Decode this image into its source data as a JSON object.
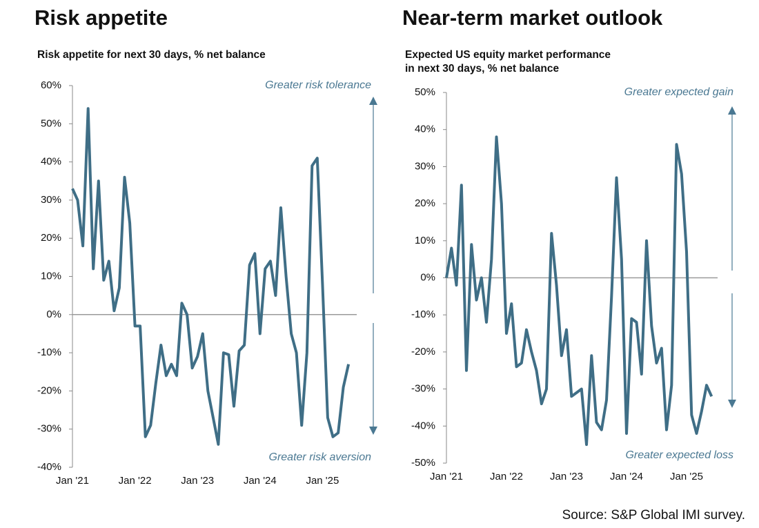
{
  "chart_data": [
    {
      "type": "line",
      "title": "Risk appetite",
      "subtitle": [
        "Risk appetite for next 30 days, % net balance"
      ],
      "annotations": [
        "Greater risk tolerance",
        "Greater risk aversion"
      ],
      "categories": [
        "Jan '21",
        null,
        null,
        null,
        null,
        null,
        null,
        null,
        null,
        null,
        null,
        null,
        "Jan '22",
        null,
        null,
        null,
        null,
        null,
        null,
        null,
        null,
        null,
        null,
        null,
        "Jan '23",
        null,
        null,
        null,
        null,
        null,
        null,
        null,
        null,
        null,
        null,
        null,
        "Jan '24",
        null,
        null,
        null,
        null,
        null,
        null,
        null,
        null,
        null,
        null,
        null,
        "Jan '25",
        null,
        null,
        null,
        null,
        null
      ],
      "values": [
        33,
        30,
        18,
        54,
        12,
        35,
        9,
        14,
        1,
        7,
        36,
        24,
        -3,
        -3,
        -32,
        -29,
        -18,
        -8,
        -16,
        -13,
        -16,
        3,
        0,
        -14,
        -11,
        -5,
        -20,
        -27,
        -34,
        -10,
        -10.5,
        -24,
        -9.5,
        -8,
        13,
        16,
        -5,
        12,
        14,
        5,
        28,
        10,
        -5,
        -10,
        -29,
        -10,
        39,
        41,
        8,
        -27,
        -32,
        -31,
        -19,
        -13
      ],
      "color": "#3f6e86",
      "ylim": [
        -40,
        60
      ],
      "yticks": [
        {
          "value": -40,
          "label": "-40%"
        },
        {
          "value": -30,
          "label": "-30%"
        },
        {
          "value": -20,
          "label": "-20%"
        },
        {
          "value": -10,
          "label": "-10%"
        },
        {
          "value": 0,
          "label": "0%"
        },
        {
          "value": 10,
          "label": "10%"
        },
        {
          "value": 20,
          "label": "20%"
        },
        {
          "value": 30,
          "label": "30%"
        },
        {
          "value": 40,
          "label": "40%"
        },
        {
          "value": 50,
          "label": "50%"
        },
        {
          "value": 60,
          "label": "60%"
        }
      ]
    },
    {
      "type": "line",
      "title": "Near-term market outlook",
      "subtitle": [
        "Expected US equity market performance",
        "in next 30 days, % net balance"
      ],
      "annotations": [
        "Greater expected gain",
        "Greater  expected loss"
      ],
      "categories": [
        "Jan '21",
        null,
        null,
        null,
        null,
        null,
        null,
        null,
        null,
        null,
        null,
        null,
        "Jan '22",
        null,
        null,
        null,
        null,
        null,
        null,
        null,
        null,
        null,
        null,
        null,
        "Jan '23",
        null,
        null,
        null,
        null,
        null,
        null,
        null,
        null,
        null,
        null,
        null,
        "Jan '24",
        null,
        null,
        null,
        null,
        null,
        null,
        null,
        null,
        null,
        null,
        null,
        "Jan '25",
        null,
        null,
        null,
        null,
        null
      ],
      "values": [
        0,
        8,
        -2,
        25,
        -25,
        9,
        -6,
        0,
        -12,
        5,
        38,
        20,
        -15,
        -7,
        -24,
        -23,
        -14,
        -20,
        -25,
        -34,
        -30,
        12,
        -2,
        -21,
        -14,
        -32,
        -31,
        -30,
        -45,
        -21,
        -39,
        -41,
        -33,
        -5,
        27,
        5,
        -42,
        -11,
        -12,
        -26,
        10,
        -13,
        -23,
        -19,
        -41,
        -29,
        36,
        28,
        7,
        -37,
        -42,
        -36,
        -29,
        -32
      ],
      "color": "#3f6e86",
      "ylim": [
        -50,
        50
      ],
      "yticks": [
        {
          "value": -50,
          "label": "-50%"
        },
        {
          "value": -40,
          "label": "-40%"
        },
        {
          "value": -30,
          "label": "-30%"
        },
        {
          "value": -20,
          "label": "-20%"
        },
        {
          "value": -10,
          "label": "-10%"
        },
        {
          "value": 0,
          "label": "0%"
        },
        {
          "value": 10,
          "label": "10%"
        },
        {
          "value": 20,
          "label": "20%"
        },
        {
          "value": 30,
          "label": "30%"
        },
        {
          "value": 40,
          "label": "40%"
        },
        {
          "value": 50,
          "label": "50%"
        }
      ]
    }
  ],
  "source": "Source: S&P Global IMI survey."
}
